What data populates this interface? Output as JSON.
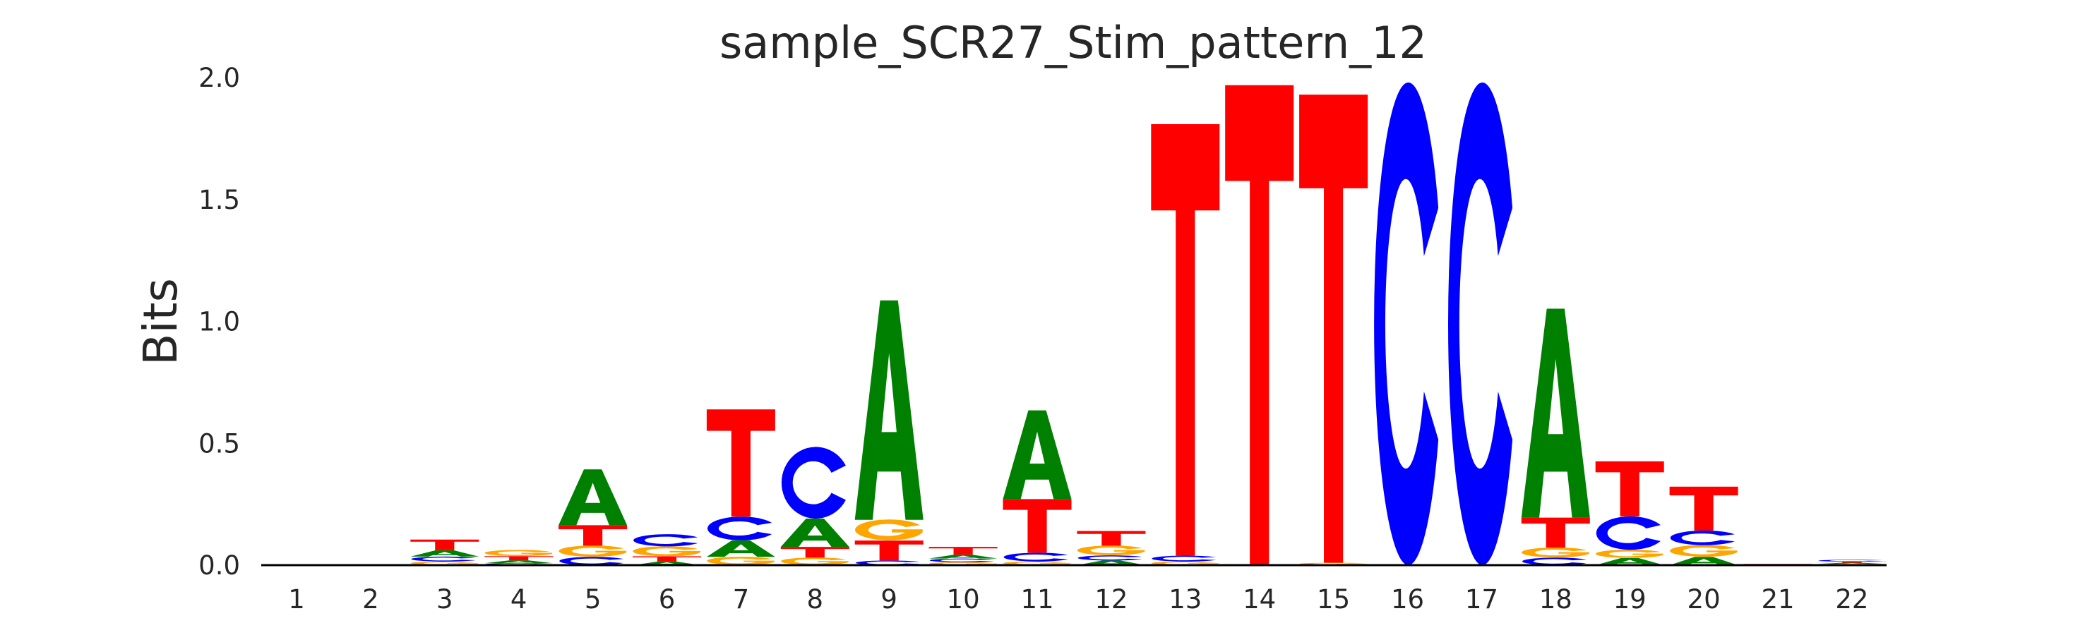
{
  "chart_data": {
    "type": "sequence-logo",
    "title": "sample_SCR27_Stim_pattern_12",
    "ylabel": "Bits",
    "xlabel": "",
    "ylim": [
      0,
      2.0
    ],
    "yticks": [
      "0.0",
      "0.5",
      "1.0",
      "1.5",
      "2.0"
    ],
    "grid": false,
    "colors": {
      "A": "#008000",
      "C": "#0000ff",
      "G": "#ffa500",
      "T": "#ff0000"
    },
    "positions": [
      {
        "label": "1",
        "stack": []
      },
      {
        "label": "2",
        "stack": []
      },
      {
        "label": "3",
        "stack": [
          [
            "G",
            0.015
          ],
          [
            "C",
            0.02
          ],
          [
            "A",
            0.026
          ],
          [
            "T",
            0.044
          ]
        ]
      },
      {
        "label": "4",
        "stack": [
          [
            "C",
            0.008
          ],
          [
            "A",
            0.012
          ],
          [
            "T",
            0.017
          ],
          [
            "G",
            0.025
          ]
        ]
      },
      {
        "label": "5",
        "stack": [
          [
            "C",
            0.034
          ],
          [
            "G",
            0.046
          ],
          [
            "T",
            0.084
          ],
          [
            "A",
            0.229
          ]
        ]
      },
      {
        "label": "6",
        "stack": [
          [
            "A",
            0.015
          ],
          [
            "T",
            0.021
          ],
          [
            "G",
            0.041
          ],
          [
            "C",
            0.05
          ]
        ]
      },
      {
        "label": "7",
        "stack": [
          [
            "G",
            0.034
          ],
          [
            "A",
            0.068
          ],
          [
            "C",
            0.097
          ],
          [
            "T",
            0.44
          ]
        ]
      },
      {
        "label": "8",
        "stack": [
          [
            "G",
            0.031
          ],
          [
            "T",
            0.044
          ],
          [
            "A",
            0.116
          ],
          [
            "C",
            0.294
          ]
        ]
      },
      {
        "label": "9",
        "stack": [
          [
            "C",
            0.019
          ],
          [
            "T",
            0.082
          ],
          [
            "G",
            0.085
          ],
          [
            "A",
            0.9
          ]
        ]
      },
      {
        "label": "10",
        "stack": [
          [
            "G",
            0.012
          ],
          [
            "C",
            0.015
          ],
          [
            "A",
            0.016
          ],
          [
            "T",
            0.032
          ]
        ]
      },
      {
        "label": "11",
        "stack": [
          [
            "G",
            0.015
          ],
          [
            "C",
            0.036
          ],
          [
            "T",
            0.22
          ],
          [
            "A",
            0.364
          ]
        ]
      },
      {
        "label": "12",
        "stack": [
          [
            "A",
            0.019
          ],
          [
            "C",
            0.021
          ],
          [
            "G",
            0.04
          ],
          [
            "T",
            0.06
          ]
        ]
      },
      {
        "label": "13",
        "stack": [
          [
            "G",
            0.015
          ],
          [
            "C",
            0.024
          ],
          [
            "T",
            1.77
          ]
        ]
      },
      {
        "label": "14",
        "stack": [
          [
            "A",
            0.004
          ],
          [
            "T",
            1.965
          ]
        ]
      },
      {
        "label": "15",
        "stack": [
          [
            "G",
            0.01
          ],
          [
            "T",
            1.92
          ]
        ]
      },
      {
        "label": "16",
        "stack": [
          [
            "C",
            1.98
          ]
        ]
      },
      {
        "label": "17",
        "stack": [
          [
            "C",
            1.98
          ]
        ]
      },
      {
        "label": "18",
        "stack": [
          [
            "C",
            0.031
          ],
          [
            "G",
            0.041
          ],
          [
            "T",
            0.123
          ],
          [
            "A",
            0.857
          ]
        ]
      },
      {
        "label": "19",
        "stack": [
          [
            "A",
            0.029
          ],
          [
            "G",
            0.034
          ],
          [
            "C",
            0.137
          ],
          [
            "T",
            0.226
          ]
        ]
      },
      {
        "label": "20",
        "stack": [
          [
            "A",
            0.034
          ],
          [
            "G",
            0.048
          ],
          [
            "C",
            0.06
          ],
          [
            "T",
            0.18
          ]
        ]
      },
      {
        "label": "21",
        "stack": [
          [
            "A",
            0.002
          ],
          [
            "T",
            0.003
          ]
        ]
      },
      {
        "label": "22",
        "stack": [
          [
            "G",
            0.005
          ],
          [
            "A",
            0.005
          ],
          [
            "T",
            0.005
          ],
          [
            "C",
            0.007
          ]
        ]
      }
    ]
  }
}
